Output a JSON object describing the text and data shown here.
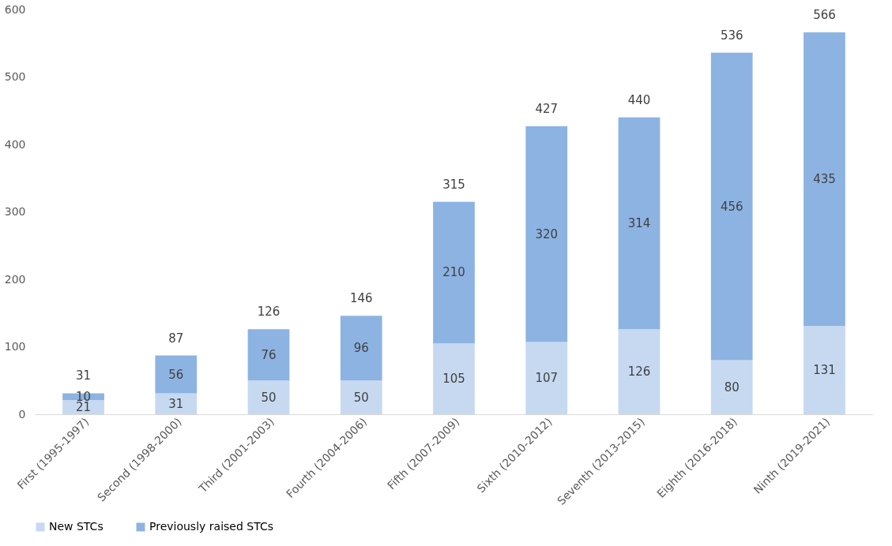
{
  "chart_data": {
    "type": "bar",
    "stacked": true,
    "categories": [
      "First (1995-1997)",
      "Second (1998-2000)",
      "Third (2001-2003)",
      "Fourth (2004-2006)",
      "Fifth (2007-2009)",
      "Sixth (2010-2012)",
      "Seventh (2013-2015)",
      "Eighth (2016-2018)",
      "Ninth (2019-2021)"
    ],
    "series": [
      {
        "name": "New STCs",
        "color": "#c6d9f1",
        "values": [
          21,
          31,
          50,
          50,
          105,
          107,
          126,
          80,
          131
        ]
      },
      {
        "name": "Previously raised STCs",
        "color": "#8db3e2",
        "values": [
          10,
          56,
          76,
          96,
          210,
          320,
          314,
          456,
          435
        ]
      }
    ],
    "totals": [
      "31",
      "87",
      "126",
      "146",
      "315",
      "427",
      "440",
      "536",
      "566"
    ],
    "ylim": [
      0,
      600
    ],
    "yticks": [
      0,
      100,
      200,
      300,
      400,
      500,
      600
    ],
    "data_labels": true,
    "grid": false,
    "legend": "bottom"
  }
}
